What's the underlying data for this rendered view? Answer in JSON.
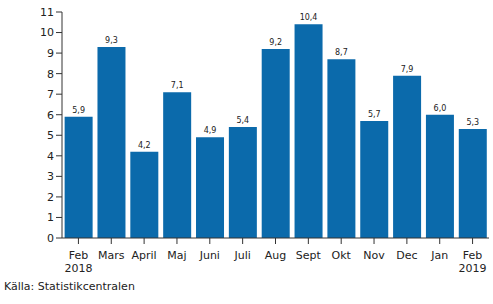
{
  "chart_data": {
    "type": "bar",
    "categories": [
      "Feb 2018",
      "Mars",
      "April",
      "Maj",
      "Juni",
      "Juli",
      "Aug",
      "Sept",
      "Okt",
      "Nov",
      "Dec",
      "Jan",
      "Feb 2019"
    ],
    "values": [
      5.9,
      9.3,
      4.2,
      7.1,
      4.9,
      5.4,
      9.2,
      10.4,
      8.7,
      5.7,
      7.9,
      6.0,
      5.3
    ],
    "value_labels": [
      "5,9",
      "9,3",
      "4,2",
      "7,1",
      "4,9",
      "5,4",
      "9,2",
      "10,4",
      "8,7",
      "5,7",
      "7,9",
      "6,0",
      "5,3"
    ],
    "color": "#0b6aab",
    "ylim": [
      0,
      11
    ],
    "yticks": [
      0,
      1,
      2,
      3,
      4,
      5,
      6,
      7,
      8,
      9,
      10,
      11
    ],
    "grid": false,
    "data_labels": true,
    "annotations": [
      "Källa: Statistikcentralen"
    ]
  }
}
